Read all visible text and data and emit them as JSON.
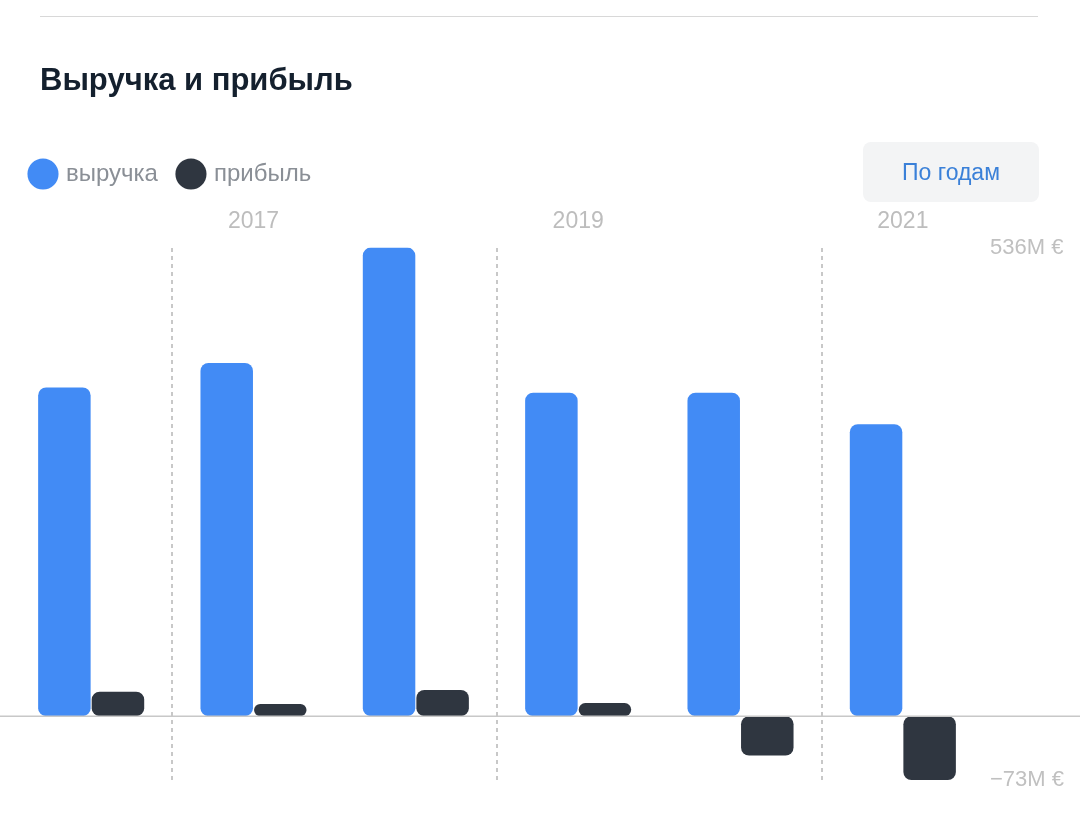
{
  "chart_data": {
    "type": "bar",
    "title": "Выручка и прибыль",
    "categories": [
      null,
      "2017",
      null,
      "2019",
      null,
      "2021"
    ],
    "series": [
      {
        "name": "выручка",
        "color": "#428bf5",
        "values": [
          376,
          404,
          536,
          370,
          370,
          334
        ]
      },
      {
        "name": "прибыль",
        "color": "#2f3640",
        "values": [
          28,
          14,
          30,
          15,
          -45,
          -73
        ]
      }
    ],
    "ylim": [
      -73,
      536
    ],
    "yticks": [
      {
        "value": 536,
        "label": "536M €"
      },
      {
        "value": -73,
        "label": "−73M €"
      }
    ],
    "grid": "x",
    "legend": "top left",
    "annotations": [
      "По годам"
    ]
  }
}
